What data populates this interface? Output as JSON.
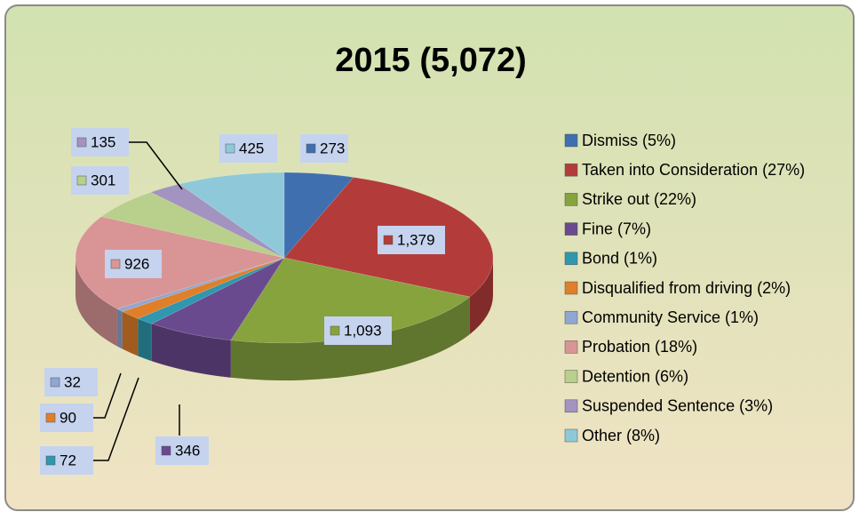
{
  "chart_data": {
    "type": "pie3d",
    "title": "2015 (5,072)",
    "categories": [
      "Dismiss (5%)",
      "Taken into Consideration (27%)",
      "Strike out (22%)",
      "Fine (7%)",
      "Bond (1%)",
      "Disqualified from driving (2%)",
      "Community Service (1%)",
      "Probation (18%)",
      "Detention (6%)",
      "Suspended Sentence (3%)",
      "Other (8%)"
    ],
    "values": [
      273,
      1379,
      1093,
      346,
      72,
      90,
      32,
      926,
      301,
      135,
      425
    ],
    "value_labels": [
      "273",
      "1,379",
      "1,093",
      "346",
      "72",
      "90",
      "32",
      "926",
      "301",
      "135",
      "425"
    ],
    "colors": [
      "#3f6fae",
      "#b33c3a",
      "#86a33e",
      "#6a4a8e",
      "#2f97ae",
      "#e07f2a",
      "#8fa7d1",
      "#d99595",
      "#b9cf8c",
      "#a393c0",
      "#8fc9d9"
    ],
    "legend": "right"
  }
}
